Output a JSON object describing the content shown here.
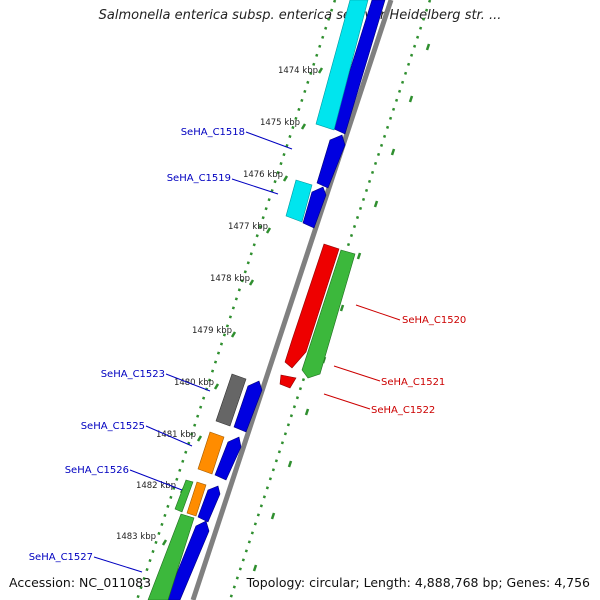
{
  "title": "Salmonella enterica subsp. enterica serovar Heidelberg str. ...",
  "accession": "Accession: NC_011083",
  "topology": "Topology: circular; Length: 4,888,768 bp; Genes: 4,756",
  "colors": {
    "backbone": "#808080",
    "tick_dots": "#2f8f2f",
    "forward_cds": "#0000e0",
    "cyan": "#00e5ee",
    "red": "#ee0000",
    "green": "#3cb83c",
    "orange": "#ff8c00",
    "gray": "#666666",
    "label_blue": "#0000c0",
    "label_red": "#cc0000"
  },
  "ticks": [
    "1474 kbp",
    "1475 kbp",
    "1476 kbp",
    "1477 kbp",
    "1478 kbp",
    "1479 kbp",
    "1480 kbp",
    "1481 kbp",
    "1482 kbp",
    "1483 kbp"
  ],
  "gene_labels_left": [
    "SeHA_C1518",
    "SeHA_C1519",
    "SeHA_C1523",
    "SeHA_C1525",
    "SeHA_C1526",
    "SeHA_C1527"
  ],
  "gene_labels_right": [
    "SeHA_C1520",
    "SeHA_C1521",
    "SeHA_C1522"
  ]
}
